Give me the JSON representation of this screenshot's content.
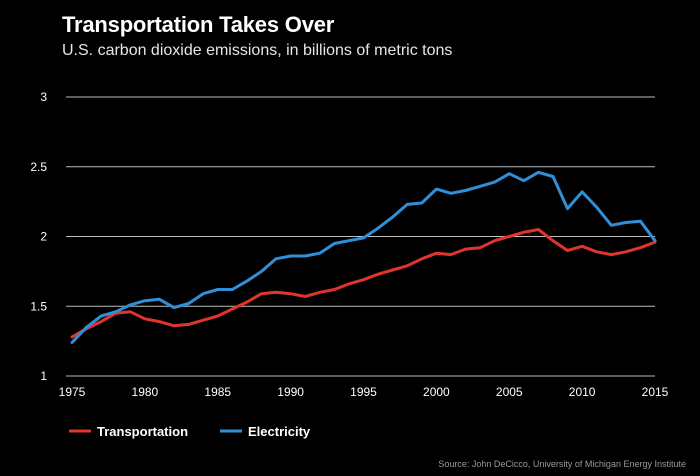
{
  "header": {
    "title": "Transportation Takes Over",
    "subtitle": "U.S. carbon dioxide emissions, in billions of metric tons"
  },
  "source": "Source: John DeCicco, University of Michigan Energy Institute",
  "chart_data": {
    "type": "line",
    "title": "Transportation Takes Over",
    "subtitle": "U.S. carbon dioxide emissions, in billions of metric tons",
    "xlabel": "",
    "ylabel": "",
    "xlim": [
      1975,
      2015
    ],
    "ylim": [
      1,
      3
    ],
    "yticks": [
      "1",
      "1.5",
      "2",
      "2.5",
      "3"
    ],
    "xticks": [
      "1975",
      "1980",
      "1985",
      "1990",
      "1995",
      "2000",
      "2005",
      "2010",
      "2015"
    ],
    "grid": "horizontal",
    "legend_position": "bottom-left",
    "x": [
      1975,
      1976,
      1977,
      1978,
      1979,
      1980,
      1981,
      1982,
      1983,
      1984,
      1985,
      1986,
      1987,
      1988,
      1989,
      1990,
      1991,
      1992,
      1993,
      1994,
      1995,
      1996,
      1997,
      1998,
      1999,
      2000,
      2001,
      2002,
      2003,
      2004,
      2005,
      2006,
      2007,
      2008,
      2009,
      2010,
      2011,
      2012,
      2013,
      2014,
      2015
    ],
    "series": [
      {
        "name": "Transportation",
        "color": "#e0352b",
        "values": [
          1.28,
          1.34,
          1.39,
          1.45,
          1.46,
          1.41,
          1.39,
          1.36,
          1.37,
          1.4,
          1.43,
          1.48,
          1.53,
          1.59,
          1.6,
          1.59,
          1.57,
          1.6,
          1.62,
          1.66,
          1.69,
          1.73,
          1.76,
          1.79,
          1.84,
          1.88,
          1.87,
          1.91,
          1.92,
          1.97,
          2.0,
          2.03,
          2.05,
          1.97,
          1.9,
          1.93,
          1.89,
          1.87,
          1.89,
          1.92,
          1.96
        ]
      },
      {
        "name": "Electricity",
        "color": "#2f8fd8",
        "values": [
          1.24,
          1.35,
          1.43,
          1.46,
          1.51,
          1.54,
          1.55,
          1.49,
          1.52,
          1.59,
          1.62,
          1.62,
          1.68,
          1.75,
          1.84,
          1.86,
          1.86,
          1.88,
          1.95,
          1.97,
          1.99,
          2.06,
          2.14,
          2.23,
          2.24,
          2.34,
          2.31,
          2.33,
          2.36,
          2.39,
          2.45,
          2.4,
          2.46,
          2.43,
          2.2,
          2.32,
          2.21,
          2.08,
          2.1,
          2.11,
          1.97
        ]
      }
    ]
  }
}
